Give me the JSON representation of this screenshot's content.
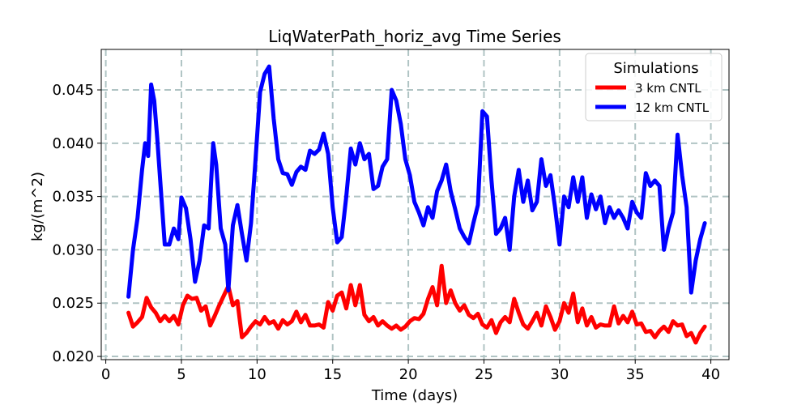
{
  "chart_data": {
    "type": "line",
    "title": "LiqWaterPath_horiz_avg Time Series",
    "xlabel": "Time (days)",
    "ylabel": "kg/(m^2)",
    "xlim": [
      -0.3,
      41.2
    ],
    "ylim": [
      0.0197,
      0.0488
    ],
    "xticks": [
      0,
      5,
      10,
      15,
      20,
      25,
      30,
      35,
      40
    ],
    "yticks": [
      0.02,
      0.025,
      0.03,
      0.035,
      0.04,
      0.045
    ],
    "xtick_labels": [
      "0",
      "5",
      "10",
      "15",
      "20",
      "25",
      "30",
      "35",
      "40"
    ],
    "ytick_labels": [
      "0.020",
      "0.025",
      "0.030",
      "0.035",
      "0.040",
      "0.045"
    ],
    "grid": true,
    "legend": {
      "title": "Simulations",
      "position": "top-right"
    },
    "series": [
      {
        "name": "3 km CNTL",
        "color": "#ff0000",
        "points": [
          [
            1.5,
            0.0241
          ],
          [
            1.8,
            0.0228
          ],
          [
            2.1,
            0.0232
          ],
          [
            2.4,
            0.0237
          ],
          [
            2.7,
            0.0255
          ],
          [
            3.0,
            0.0246
          ],
          [
            3.3,
            0.0241
          ],
          [
            3.6,
            0.0233
          ],
          [
            3.9,
            0.0238
          ],
          [
            4.2,
            0.0233
          ],
          [
            4.5,
            0.0238
          ],
          [
            4.8,
            0.023
          ],
          [
            5.1,
            0.0248
          ],
          [
            5.4,
            0.0257
          ],
          [
            5.7,
            0.0254
          ],
          [
            6.0,
            0.0255
          ],
          [
            6.3,
            0.0243
          ],
          [
            6.6,
            0.0247
          ],
          [
            6.9,
            0.0229
          ],
          [
            7.2,
            0.0238
          ],
          [
            7.5,
            0.0248
          ],
          [
            7.8,
            0.0257
          ],
          [
            8.1,
            0.0266
          ],
          [
            8.4,
            0.0248
          ],
          [
            8.7,
            0.0252
          ],
          [
            9.0,
            0.0218
          ],
          [
            9.3,
            0.0222
          ],
          [
            9.6,
            0.0228
          ],
          [
            9.9,
            0.0233
          ],
          [
            10.2,
            0.023
          ],
          [
            10.5,
            0.0237
          ],
          [
            10.8,
            0.0231
          ],
          [
            11.1,
            0.0233
          ],
          [
            11.4,
            0.0226
          ],
          [
            11.7,
            0.0234
          ],
          [
            12.0,
            0.023
          ],
          [
            12.3,
            0.0233
          ],
          [
            12.6,
            0.0242
          ],
          [
            12.9,
            0.0232
          ],
          [
            13.2,
            0.0239
          ],
          [
            13.5,
            0.0229
          ],
          [
            13.8,
            0.0229
          ],
          [
            14.1,
            0.023
          ],
          [
            14.4,
            0.0227
          ],
          [
            14.7,
            0.0251
          ],
          [
            15.0,
            0.0243
          ],
          [
            15.3,
            0.0257
          ],
          [
            15.6,
            0.026
          ],
          [
            15.9,
            0.0245
          ],
          [
            16.2,
            0.0267
          ],
          [
            16.5,
            0.0248
          ],
          [
            16.8,
            0.0267
          ],
          [
            17.1,
            0.0239
          ],
          [
            17.4,
            0.0233
          ],
          [
            17.7,
            0.0237
          ],
          [
            18.0,
            0.0229
          ],
          [
            18.3,
            0.0233
          ],
          [
            18.6,
            0.0229
          ],
          [
            18.9,
            0.0226
          ],
          [
            19.2,
            0.0229
          ],
          [
            19.5,
            0.0225
          ],
          [
            19.8,
            0.0228
          ],
          [
            20.1,
            0.0233
          ],
          [
            20.4,
            0.0236
          ],
          [
            20.7,
            0.0235
          ],
          [
            21.0,
            0.024
          ],
          [
            21.3,
            0.0254
          ],
          [
            21.6,
            0.0265
          ],
          [
            21.9,
            0.0248
          ],
          [
            22.2,
            0.0285
          ],
          [
            22.5,
            0.025
          ],
          [
            22.8,
            0.0262
          ],
          [
            23.1,
            0.025
          ],
          [
            23.4,
            0.0243
          ],
          [
            23.7,
            0.0248
          ],
          [
            24.0,
            0.0239
          ],
          [
            24.3,
            0.0236
          ],
          [
            24.6,
            0.024
          ],
          [
            24.9,
            0.023
          ],
          [
            25.2,
            0.0227
          ],
          [
            25.5,
            0.0234
          ],
          [
            25.8,
            0.0222
          ],
          [
            26.1,
            0.0232
          ],
          [
            26.4,
            0.0237
          ],
          [
            26.7,
            0.0232
          ],
          [
            27.0,
            0.0254
          ],
          [
            27.3,
            0.0241
          ],
          [
            27.6,
            0.023
          ],
          [
            27.9,
            0.0226
          ],
          [
            28.2,
            0.0233
          ],
          [
            28.5,
            0.0241
          ],
          [
            28.8,
            0.0229
          ],
          [
            29.1,
            0.0247
          ],
          [
            29.4,
            0.0237
          ],
          [
            29.7,
            0.0225
          ],
          [
            30.0,
            0.0233
          ],
          [
            30.3,
            0.025
          ],
          [
            30.6,
            0.0241
          ],
          [
            30.9,
            0.0259
          ],
          [
            31.2,
            0.0232
          ],
          [
            31.5,
            0.0245
          ],
          [
            31.8,
            0.0229
          ],
          [
            32.1,
            0.0237
          ],
          [
            32.4,
            0.0227
          ],
          [
            32.7,
            0.023
          ],
          [
            33.0,
            0.0229
          ],
          [
            33.3,
            0.0229
          ],
          [
            33.6,
            0.0247
          ],
          [
            33.9,
            0.0231
          ],
          [
            34.2,
            0.0238
          ],
          [
            34.5,
            0.0232
          ],
          [
            34.8,
            0.0242
          ],
          [
            35.1,
            0.023
          ],
          [
            35.4,
            0.0231
          ],
          [
            35.7,
            0.0223
          ],
          [
            36.0,
            0.0224
          ],
          [
            36.3,
            0.0218
          ],
          [
            36.6,
            0.0224
          ],
          [
            36.9,
            0.0228
          ],
          [
            37.2,
            0.0223
          ],
          [
            37.5,
            0.0233
          ],
          [
            37.8,
            0.0229
          ],
          [
            38.1,
            0.023
          ],
          [
            38.4,
            0.0219
          ],
          [
            38.7,
            0.0222
          ],
          [
            39.0,
            0.0213
          ],
          [
            39.3,
            0.0222
          ],
          [
            39.6,
            0.0228
          ]
        ]
      },
      {
        "name": "12 km CNTL",
        "color": "#0000ff",
        "points": [
          [
            1.5,
            0.0256
          ],
          [
            1.8,
            0.03
          ],
          [
            2.1,
            0.033
          ],
          [
            2.4,
            0.0375
          ],
          [
            2.6,
            0.04
          ],
          [
            2.8,
            0.0388
          ],
          [
            3.0,
            0.0455
          ],
          [
            3.2,
            0.044
          ],
          [
            3.4,
            0.0405
          ],
          [
            3.6,
            0.0365
          ],
          [
            3.9,
            0.0305
          ],
          [
            4.2,
            0.0305
          ],
          [
            4.5,
            0.032
          ],
          [
            4.8,
            0.031
          ],
          [
            5.0,
            0.0349
          ],
          [
            5.3,
            0.0339
          ],
          [
            5.6,
            0.031
          ],
          [
            5.9,
            0.027
          ],
          [
            6.2,
            0.029
          ],
          [
            6.5,
            0.0323
          ],
          [
            6.8,
            0.032
          ],
          [
            7.1,
            0.04
          ],
          [
            7.3,
            0.038
          ],
          [
            7.6,
            0.032
          ],
          [
            7.9,
            0.0305
          ],
          [
            8.1,
            0.0262
          ],
          [
            8.4,
            0.0323
          ],
          [
            8.7,
            0.0342
          ],
          [
            9.0,
            0.0315
          ],
          [
            9.3,
            0.029
          ],
          [
            9.6,
            0.0325
          ],
          [
            9.9,
            0.0385
          ],
          [
            10.2,
            0.0448
          ],
          [
            10.5,
            0.0465
          ],
          [
            10.8,
            0.0472
          ],
          [
            11.1,
            0.0423
          ],
          [
            11.4,
            0.0385
          ],
          [
            11.7,
            0.0372
          ],
          [
            12.0,
            0.0371
          ],
          [
            12.3,
            0.0361
          ],
          [
            12.6,
            0.0373
          ],
          [
            12.9,
            0.0378
          ],
          [
            13.2,
            0.0375
          ],
          [
            13.5,
            0.0393
          ],
          [
            13.8,
            0.039
          ],
          [
            14.1,
            0.0394
          ],
          [
            14.4,
            0.0409
          ],
          [
            14.7,
            0.039
          ],
          [
            15.0,
            0.034
          ],
          [
            15.3,
            0.0307
          ],
          [
            15.6,
            0.0312
          ],
          [
            15.9,
            0.035
          ],
          [
            16.2,
            0.0395
          ],
          [
            16.5,
            0.038
          ],
          [
            16.8,
            0.04
          ],
          [
            17.1,
            0.0385
          ],
          [
            17.4,
            0.039
          ],
          [
            17.7,
            0.0357
          ],
          [
            18.0,
            0.036
          ],
          [
            18.3,
            0.0378
          ],
          [
            18.6,
            0.0385
          ],
          [
            18.9,
            0.045
          ],
          [
            19.2,
            0.044
          ],
          [
            19.5,
            0.0418
          ],
          [
            19.8,
            0.0385
          ],
          [
            20.1,
            0.037
          ],
          [
            20.4,
            0.0345
          ],
          [
            20.7,
            0.0335
          ],
          [
            21.0,
            0.0323
          ],
          [
            21.3,
            0.034
          ],
          [
            21.6,
            0.033
          ],
          [
            21.9,
            0.0355
          ],
          [
            22.2,
            0.0365
          ],
          [
            22.5,
            0.038
          ],
          [
            22.8,
            0.0355
          ],
          [
            23.1,
            0.0338
          ],
          [
            23.4,
            0.032
          ],
          [
            23.7,
            0.0312
          ],
          [
            24.0,
            0.0306
          ],
          [
            24.3,
            0.0325
          ],
          [
            24.6,
            0.0342
          ],
          [
            24.9,
            0.043
          ],
          [
            25.2,
            0.0425
          ],
          [
            25.5,
            0.0365
          ],
          [
            25.8,
            0.0315
          ],
          [
            26.1,
            0.032
          ],
          [
            26.4,
            0.033
          ],
          [
            26.7,
            0.03
          ],
          [
            27.0,
            0.035
          ],
          [
            27.3,
            0.0375
          ],
          [
            27.6,
            0.0345
          ],
          [
            27.9,
            0.0365
          ],
          [
            28.2,
            0.0337
          ],
          [
            28.5,
            0.0345
          ],
          [
            28.8,
            0.0385
          ],
          [
            29.1,
            0.036
          ],
          [
            29.4,
            0.037
          ],
          [
            29.7,
            0.034
          ],
          [
            30.0,
            0.0305
          ],
          [
            30.3,
            0.035
          ],
          [
            30.6,
            0.034
          ],
          [
            30.9,
            0.0368
          ],
          [
            31.2,
            0.0345
          ],
          [
            31.5,
            0.0368
          ],
          [
            31.8,
            0.033
          ],
          [
            32.1,
            0.0352
          ],
          [
            32.4,
            0.0338
          ],
          [
            32.7,
            0.035
          ],
          [
            33.0,
            0.0325
          ],
          [
            33.3,
            0.034
          ],
          [
            33.6,
            0.033
          ],
          [
            33.9,
            0.0337
          ],
          [
            34.2,
            0.033
          ],
          [
            34.5,
            0.032
          ],
          [
            34.8,
            0.0345
          ],
          [
            35.1,
            0.0335
          ],
          [
            35.4,
            0.033
          ],
          [
            35.7,
            0.0372
          ],
          [
            36.0,
            0.036
          ],
          [
            36.3,
            0.0365
          ],
          [
            36.6,
            0.036
          ],
          [
            36.9,
            0.03
          ],
          [
            37.2,
            0.032
          ],
          [
            37.5,
            0.0335
          ],
          [
            37.8,
            0.0408
          ],
          [
            38.1,
            0.037
          ],
          [
            38.4,
            0.034
          ],
          [
            38.7,
            0.026
          ],
          [
            39.0,
            0.029
          ],
          [
            39.3,
            0.031
          ],
          [
            39.6,
            0.0325
          ]
        ]
      }
    ]
  }
}
